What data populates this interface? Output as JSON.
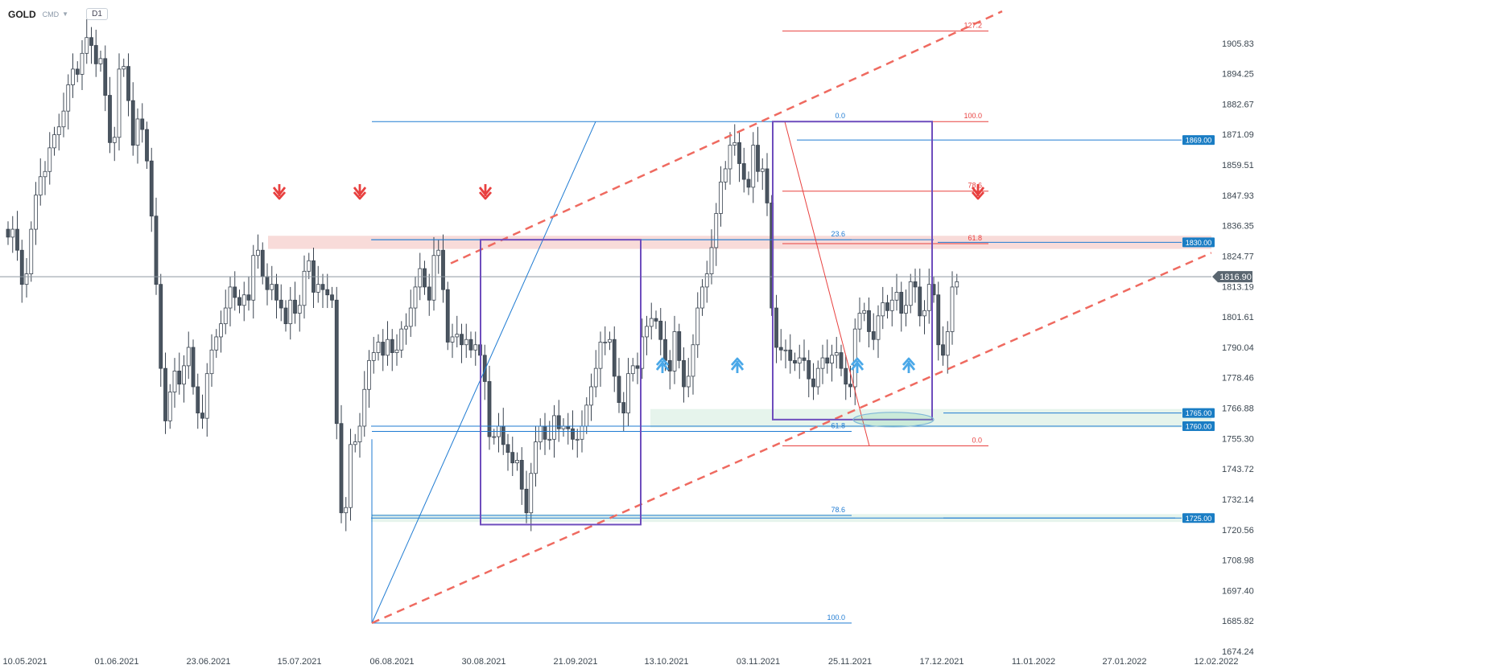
{
  "header": {
    "symbol": "GOLD",
    "source": "CMD",
    "timeframe": "D1"
  },
  "colors": {
    "candle_up": "#ffffff",
    "candle_down": "#4a5560",
    "wick": "#3a4450",
    "support_blue": "#1f7bd2",
    "fib_red": "#e8403f",
    "channel": "#ef6a60",
    "box": "#6e4dbd",
    "zone_red": "#f6d2d0",
    "zone_green": "#e3f3ea",
    "label_bg": "#1a7dc4",
    "current_bg": "#5a6670"
  },
  "chart_data": {
    "type": "candlestick",
    "symbol": "GOLD",
    "timeframe": "D1",
    "ylim": [
      1674.24,
      1917.41
    ],
    "y_ticks": [
      "1905.83",
      "1894.25",
      "1882.67",
      "1871.09",
      "1859.51",
      "1847.93",
      "1836.35",
      "1824.77",
      "1813.19",
      "1801.61",
      "1790.04",
      "1778.46",
      "1766.88",
      "1755.30",
      "1743.72",
      "1732.14",
      "1720.56",
      "1708.98",
      "1697.40",
      "1685.82",
      "1674.24"
    ],
    "x_ticks": [
      "10.05.2021",
      "01.06.2021",
      "23.06.2021",
      "15.07.2021",
      "06.08.2021",
      "30.08.2021",
      "21.09.2021",
      "13.10.2021",
      "03.11.2021",
      "25.11.2021",
      "17.12.2021",
      "11.01.2022",
      "27.01.2022",
      "12.02.2022"
    ],
    "current_price": "1816.90",
    "price_levels": [
      {
        "price": 1869.0,
        "label": "1869.00"
      },
      {
        "price": 1830.0,
        "label": "1830.00"
      },
      {
        "price": 1765.0,
        "label": "1765.00"
      },
      {
        "price": 1760.0,
        "label": "1760.00"
      },
      {
        "price": 1725.0,
        "label": "1725.00"
      }
    ],
    "fib_blue_labels": [
      "0.0",
      "23.6",
      "61.8",
      "78.6",
      "100.0"
    ],
    "fib_red_labels": [
      "127.2",
      "100.0",
      "78.6",
      "61.8",
      "0.0"
    ],
    "closes": [
      1832,
      1835,
      1827,
      1814,
      1818,
      1835,
      1848,
      1855,
      1857,
      1866,
      1871,
      1874,
      1880,
      1890,
      1896,
      1894,
      1902,
      1908,
      1905,
      1898,
      1900,
      1886,
      1868,
      1870,
      1896,
      1897,
      1884,
      1867,
      1877,
      1873,
      1861,
      1840,
      1814,
      1782,
      1762,
      1773,
      1781,
      1776,
      1783,
      1790,
      1775,
      1765,
      1763,
      1780,
      1789,
      1794,
      1799,
      1805,
      1813,
      1809,
      1806,
      1810,
      1808,
      1825,
      1827,
      1817,
      1812,
      1814,
      1808,
      1805,
      1799,
      1808,
      1803,
      1806,
      1819,
      1823,
      1811,
      1814,
      1812,
      1810,
      1808,
      1761,
      1727,
      1729,
      1753,
      1754,
      1760,
      1774,
      1785,
      1788,
      1792,
      1787,
      1793,
      1788,
      1789,
      1797,
      1798,
      1805,
      1813,
      1820,
      1813,
      1808,
      1825,
      1827,
      1812,
      1792,
      1794,
      1795,
      1791,
      1793,
      1789,
      1791,
      1787,
      1777,
      1756,
      1756,
      1760,
      1753,
      1750,
      1746,
      1747,
      1736,
      1727,
      1742,
      1754,
      1760,
      1755,
      1755,
      1764,
      1759,
      1760,
      1759,
      1755,
      1755,
      1760,
      1768,
      1775,
      1782,
      1792,
      1792,
      1793,
      1779,
      1769,
      1765,
      1780,
      1783,
      1782,
      1794,
      1798,
      1801,
      1800,
      1793,
      1785,
      1781,
      1796,
      1785,
      1775,
      1779,
      1791,
      1805,
      1813,
      1818,
      1828,
      1841,
      1853,
      1858,
      1867,
      1868,
      1860,
      1854,
      1851,
      1867,
      1857,
      1858,
      1845,
      1805,
      1790,
      1789,
      1789,
      1785,
      1784,
      1786,
      1785,
      1778,
      1775,
      1782,
      1786,
      1784,
      1787,
      1788,
      1782,
      1776,
      1775,
      1797,
      1803,
      1804,
      1796,
      1793,
      1802,
      1807,
      1804,
      1808,
      1811,
      1803,
      1806,
      1815,
      1813,
      1802,
      1804,
      1814,
      1810,
      1791,
      1787,
      1796,
      1813,
      1815
    ]
  }
}
